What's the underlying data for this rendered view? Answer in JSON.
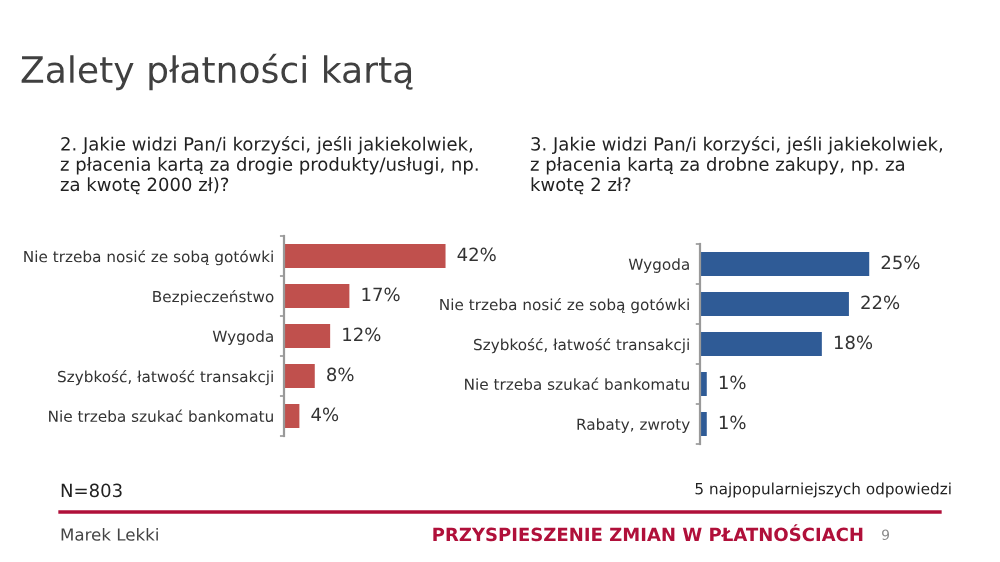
{
  "chart_data": [
    {
      "type": "bar",
      "orientation": "horizontal",
      "title": "Zalety płatności kartą",
      "subtitle": "2. Jakie widzi Pan/i korzyści, jeśli jakiekolwiek, z płacenia kartą za drogie produkty/usługi, np. za kwotę 2000 zł)?",
      "categories": [
        "Nie trzeba nosić ze sobą gotówki",
        "Bezpieczeństwo",
        "Wygoda",
        "Szybkość, łatwość transakcji",
        "Nie trzeba szukać bankomatu"
      ],
      "values": [
        42,
        17,
        12,
        8,
        4
      ],
      "color": "#c0504d",
      "value_labels": [
        "42%",
        "17%",
        "12%",
        "8%",
        "4%"
      ],
      "annotations": [
        "N=803",
        "Marek Lekki",
        "PRZYSPIESZENIE ZMIAN W PŁATNOŚCIACH",
        "9"
      ]
    },
    {
      "type": "bar",
      "orientation": "horizontal",
      "title": "3. Jakie widzi Pan/i korzyści, jeśli jakiekolwiek, z płacenia kartą za drobne zakupy, np. za kwotę 2 zł?",
      "categories": [
        "Wygoda",
        "Nie trzeba nosić ze sobą gotówki",
        "Szybkość, łatwość transakcji",
        "Nie trzeba szukać bankomatu",
        "Rabaty, zwroty"
      ],
      "values": [
        25,
        22,
        18,
        1,
        1
      ],
      "color": "#2f5b96",
      "value_labels": [
        "25%",
        "22%",
        "18%",
        "1%",
        "1%"
      ],
      "annotations": [
        "5 najpopularniejszych odpowiedzi"
      ]
    }
  ]
}
